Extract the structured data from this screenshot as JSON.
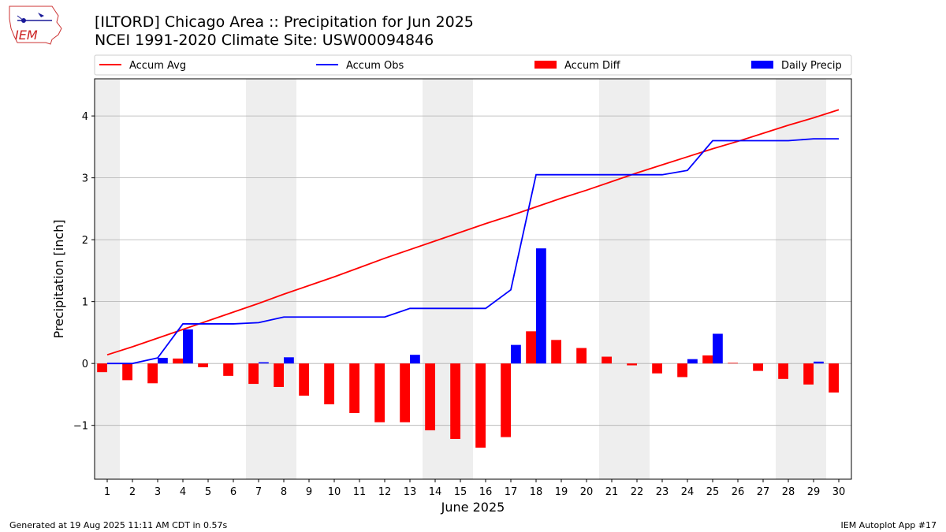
{
  "header": {
    "title_line1": "[ILTORD] Chicago Area :: Precipitation for Jun 2025",
    "title_line2": "NCEI 1991-2020 Climate Site: USW00094846",
    "logo_text": "IEM"
  },
  "footer": {
    "left": "Generated at 19 Aug 2025 11:11 AM CDT in 0.57s",
    "right": "IEM Autoplot App #17"
  },
  "colors": {
    "accum_avg": "#ff0000",
    "accum_obs": "#0000ff",
    "accum_diff": "#ff0000",
    "daily_precip": "#0000ff",
    "weekend_shade": "#eeeeee",
    "grid": "#b0b0b0"
  },
  "chart_data": {
    "type": "bar",
    "xlabel": "June 2025",
    "ylabel": "Precipitation [inch]",
    "x": [
      1,
      2,
      3,
      4,
      5,
      6,
      7,
      8,
      9,
      10,
      11,
      12,
      13,
      14,
      15,
      16,
      17,
      18,
      19,
      20,
      21,
      22,
      23,
      24,
      25,
      26,
      27,
      28,
      29,
      30
    ],
    "xlim": [
      0.5,
      30.5
    ],
    "ylim": [
      -1.87,
      4.6
    ],
    "yticks": [
      -1,
      0,
      1,
      2,
      3,
      4
    ],
    "ytick_labels": [
      "−1",
      "0",
      "1",
      "2",
      "3",
      "4"
    ],
    "grid": "horizontal",
    "legend": {
      "placement": "top",
      "entries": [
        "Accum Avg",
        "Accum Obs",
        "Accum Diff",
        "Daily Precip"
      ]
    },
    "shaded_days": [
      [
        1,
        1
      ],
      [
        7,
        8
      ],
      [
        14,
        15
      ],
      [
        21,
        22
      ],
      [
        28,
        29
      ]
    ],
    "series": [
      {
        "name": "Accum Avg",
        "kind": "line",
        "values": [
          0.14,
          0.27,
          0.41,
          0.55,
          0.69,
          0.83,
          0.97,
          1.12,
          1.26,
          1.4,
          1.55,
          1.7,
          1.84,
          1.98,
          2.12,
          2.26,
          2.39,
          2.53,
          2.67,
          2.8,
          2.94,
          3.08,
          3.21,
          3.34,
          3.47,
          3.59,
          3.72,
          3.85,
          3.97,
          4.1
        ]
      },
      {
        "name": "Accum Obs",
        "kind": "line",
        "values": [
          0.0,
          0.0,
          0.09,
          0.64,
          0.64,
          0.64,
          0.66,
          0.75,
          0.75,
          0.75,
          0.75,
          0.75,
          0.89,
          0.89,
          0.89,
          0.89,
          1.19,
          3.05,
          3.05,
          3.05,
          3.05,
          3.05,
          3.05,
          3.12,
          3.6,
          3.6,
          3.6,
          3.6,
          3.63,
          3.63
        ]
      },
      {
        "name": "Accum Diff",
        "kind": "bar",
        "values": [
          -0.14,
          -0.27,
          -0.32,
          0.08,
          -0.06,
          -0.2,
          -0.33,
          -0.38,
          -0.52,
          -0.66,
          -0.8,
          -0.95,
          -0.95,
          -1.08,
          -1.22,
          -1.36,
          -1.19,
          0.52,
          0.38,
          0.25,
          0.11,
          -0.03,
          -0.16,
          -0.22,
          0.13,
          0.01,
          -0.12,
          -0.25,
          -0.34,
          -0.47
        ]
      },
      {
        "name": "Daily Precip",
        "kind": "bar",
        "values": [
          0,
          0,
          0.09,
          0.55,
          0,
          0,
          0.02,
          0.1,
          0,
          0,
          0,
          0,
          0.14,
          0,
          0,
          0,
          0.3,
          1.86,
          0,
          0,
          0,
          0,
          0,
          0.07,
          0.48,
          0,
          0,
          0,
          0.03,
          0
        ]
      }
    ]
  }
}
